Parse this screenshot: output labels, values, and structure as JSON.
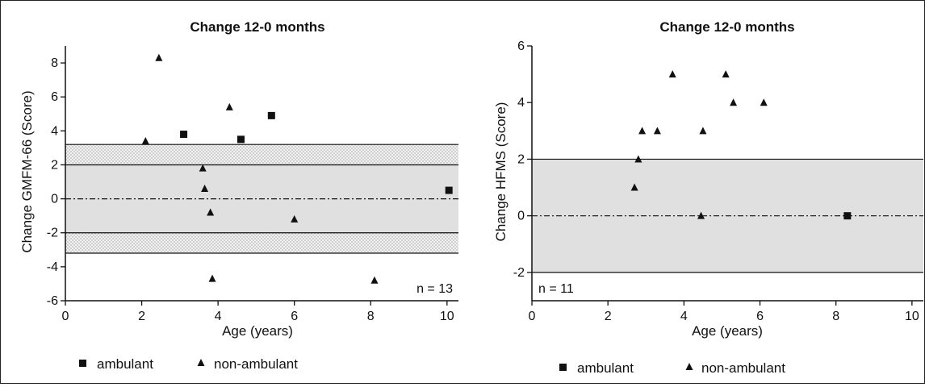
{
  "chart_data": [
    {
      "type": "scatter",
      "title": "Change 12-0 months",
      "xlabel": "Age (years)",
      "ylabel": "Change GMFM-66 (Score)",
      "xlim": [
        0,
        10.3
      ],
      "ylim": [
        -6,
        9
      ],
      "xticks": [
        0,
        2,
        4,
        6,
        8,
        10
      ],
      "yticks": [
        -6,
        -4,
        -2,
        0,
        2,
        4,
        6,
        8
      ],
      "annotation": "n = 13",
      "bands": [
        {
          "from": -3.2,
          "to": 3.2,
          "fill": "#ebebeb",
          "pattern": "dotted"
        },
        {
          "from": -2.0,
          "to": 2.0,
          "fill": "#e0e0e0"
        }
      ],
      "reference_lines": [
        {
          "y": 2.0,
          "style": "solid"
        },
        {
          "y": -2.0,
          "style": "solid"
        },
        {
          "y": 3.2,
          "style": "solid"
        },
        {
          "y": -3.2,
          "style": "solid"
        },
        {
          "y": 0,
          "style": "dash-dot"
        }
      ],
      "series": [
        {
          "name": "ambulant",
          "marker": "square",
          "points": [
            {
              "x": 3.1,
              "y": 3.8
            },
            {
              "x": 4.6,
              "y": 3.5
            },
            {
              "x": 5.4,
              "y": 4.9
            },
            {
              "x": 10.05,
              "y": 0.5
            }
          ]
        },
        {
          "name": "non-ambulant",
          "marker": "triangle",
          "points": [
            {
              "x": 2.1,
              "y": 3.4
            },
            {
              "x": 2.45,
              "y": 8.3
            },
            {
              "x": 3.6,
              "y": 1.8
            },
            {
              "x": 3.65,
              "y": 0.6
            },
            {
              "x": 3.8,
              "y": -0.8
            },
            {
              "x": 3.85,
              "y": -4.7
            },
            {
              "x": 4.3,
              "y": 5.4
            },
            {
              "x": 6.0,
              "y": -1.2
            },
            {
              "x": 8.1,
              "y": -4.8
            }
          ]
        }
      ]
    },
    {
      "type": "scatter",
      "title": "Change 12-0 months",
      "xlabel": "Age (years)",
      "ylabel": "Change HFMS (Score)",
      "xlim": [
        0,
        10.3
      ],
      "ylim": [
        -3,
        6
      ],
      "xticks": [
        0,
        2,
        4,
        6,
        8,
        10
      ],
      "yticks": [
        -2,
        0,
        2,
        4,
        6
      ],
      "annotation": "n = 11",
      "bands": [
        {
          "from": -2.0,
          "to": 2.0,
          "fill": "#e0e0e0"
        }
      ],
      "reference_lines": [
        {
          "y": 2.0,
          "style": "solid"
        },
        {
          "y": -2.0,
          "style": "solid"
        },
        {
          "y": 0,
          "style": "dash-dot"
        }
      ],
      "series": [
        {
          "name": "ambulant",
          "marker": "square",
          "points": [
            {
              "x": 8.3,
              "y": 0
            }
          ]
        },
        {
          "name": "non-ambulant",
          "marker": "triangle",
          "points": [
            {
              "x": 2.7,
              "y": 1
            },
            {
              "x": 2.8,
              "y": 2
            },
            {
              "x": 2.9,
              "y": 3
            },
            {
              "x": 3.3,
              "y": 3
            },
            {
              "x": 3.7,
              "y": 5
            },
            {
              "x": 4.45,
              "y": 0
            },
            {
              "x": 4.5,
              "y": 3
            },
            {
              "x": 5.1,
              "y": 5
            },
            {
              "x": 5.3,
              "y": 4
            },
            {
              "x": 6.1,
              "y": 4
            }
          ]
        }
      ]
    }
  ],
  "legend": {
    "items": [
      {
        "label": "ambulant",
        "marker": "square"
      },
      {
        "label": "non-ambulant",
        "marker": "triangle"
      }
    ]
  }
}
